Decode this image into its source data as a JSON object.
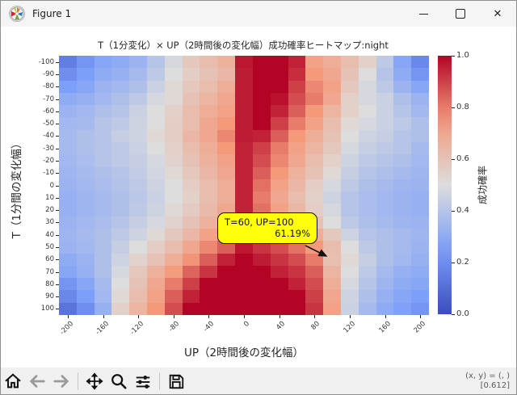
{
  "window": {
    "title": "Figure 1",
    "controls": {
      "minimize": "minimize",
      "maximize": "maximize",
      "close": "close"
    }
  },
  "chart_data": {
    "type": "heatmap",
    "title": "T（1分変化）× UP（2時間後の変化幅）成功確率ヒートマップ:night",
    "xlabel": "UP（2時間後の変化幅）",
    "ylabel": "T（1分間の変化幅）",
    "colormap": "coolwarm",
    "x": [
      -200,
      -180,
      -160,
      -140,
      -120,
      -100,
      -80,
      -60,
      -40,
      -20,
      0,
      20,
      40,
      60,
      80,
      100,
      120,
      140,
      160,
      180,
      200
    ],
    "y": [
      -100,
      -90,
      -80,
      -70,
      -60,
      -50,
      -40,
      -30,
      -20,
      -10,
      0,
      10,
      20,
      30,
      40,
      50,
      60,
      70,
      80,
      90,
      100
    ],
    "xticklabels": [
      "-200",
      "-160",
      "-120",
      "-80",
      "-40",
      "0",
      "40",
      "80",
      "120",
      "160",
      "200"
    ],
    "yticklabels": [
      "-100",
      "-90",
      "-80",
      "-70",
      "-60",
      "-50",
      "-40",
      "-30",
      "-20",
      "-10",
      "0",
      "10",
      "20",
      "30",
      "40",
      "50",
      "60",
      "70",
      "80",
      "90",
      "100"
    ],
    "values": [
      [
        0.15,
        0.22,
        0.28,
        0.3,
        0.33,
        0.4,
        0.48,
        0.58,
        0.62,
        0.66,
        0.97,
        1.0,
        1.0,
        0.95,
        0.72,
        0.68,
        0.62,
        0.55,
        0.42,
        0.28,
        0.18
      ],
      [
        0.2,
        0.25,
        0.3,
        0.32,
        0.36,
        0.42,
        0.5,
        0.56,
        0.6,
        0.64,
        0.96,
        1.0,
        1.0,
        0.93,
        0.75,
        0.7,
        0.6,
        0.5,
        0.4,
        0.3,
        0.22
      ],
      [
        0.25,
        0.28,
        0.33,
        0.35,
        0.38,
        0.45,
        0.52,
        0.58,
        0.62,
        0.68,
        0.96,
        1.0,
        1.0,
        0.9,
        0.78,
        0.72,
        0.58,
        0.48,
        0.42,
        0.33,
        0.28
      ],
      [
        0.3,
        0.32,
        0.35,
        0.38,
        0.42,
        0.48,
        0.52,
        0.6,
        0.65,
        0.7,
        0.96,
        1.0,
        0.98,
        0.88,
        0.8,
        0.7,
        0.55,
        0.48,
        0.45,
        0.38,
        0.33
      ],
      [
        0.33,
        0.35,
        0.38,
        0.4,
        0.45,
        0.5,
        0.55,
        0.62,
        0.68,
        0.72,
        0.96,
        1.0,
        0.95,
        0.85,
        0.75,
        0.65,
        0.55,
        0.5,
        0.45,
        0.4,
        0.35
      ],
      [
        0.35,
        0.36,
        0.4,
        0.42,
        0.46,
        0.5,
        0.56,
        0.62,
        0.7,
        0.75,
        0.96,
        1.0,
        0.9,
        0.8,
        0.72,
        0.62,
        0.52,
        0.48,
        0.45,
        0.42,
        0.38
      ],
      [
        0.36,
        0.38,
        0.4,
        0.44,
        0.46,
        0.52,
        0.56,
        0.64,
        0.7,
        0.78,
        0.96,
        0.95,
        0.85,
        0.75,
        0.68,
        0.6,
        0.5,
        0.46,
        0.44,
        0.4,
        0.38
      ],
      [
        0.36,
        0.38,
        0.4,
        0.42,
        0.45,
        0.5,
        0.55,
        0.62,
        0.68,
        0.75,
        0.95,
        0.9,
        0.8,
        0.72,
        0.65,
        0.58,
        0.48,
        0.44,
        0.42,
        0.4,
        0.36
      ],
      [
        0.35,
        0.37,
        0.4,
        0.42,
        0.44,
        0.48,
        0.54,
        0.6,
        0.66,
        0.72,
        0.95,
        0.88,
        0.78,
        0.7,
        0.62,
        0.55,
        0.46,
        0.42,
        0.4,
        0.38,
        0.35
      ],
      [
        0.34,
        0.36,
        0.38,
        0.4,
        0.43,
        0.47,
        0.52,
        0.58,
        0.64,
        0.7,
        0.95,
        0.85,
        0.75,
        0.66,
        0.6,
        0.52,
        0.44,
        0.4,
        0.38,
        0.36,
        0.34
      ],
      [
        0.33,
        0.35,
        0.37,
        0.39,
        0.42,
        0.46,
        0.5,
        0.56,
        0.62,
        0.68,
        0.95,
        0.82,
        0.72,
        0.64,
        0.56,
        0.48,
        0.42,
        0.38,
        0.36,
        0.34,
        0.33
      ],
      [
        0.32,
        0.34,
        0.36,
        0.38,
        0.41,
        0.45,
        0.5,
        0.55,
        0.62,
        0.68,
        0.95,
        0.8,
        0.7,
        0.62,
        0.55,
        0.46,
        0.4,
        0.37,
        0.35,
        0.33,
        0.32
      ],
      [
        0.32,
        0.34,
        0.36,
        0.38,
        0.42,
        0.46,
        0.52,
        0.57,
        0.63,
        0.7,
        0.95,
        0.82,
        0.72,
        0.64,
        0.56,
        0.48,
        0.4,
        0.37,
        0.35,
        0.33,
        0.32
      ],
      [
        0.33,
        0.35,
        0.37,
        0.4,
        0.44,
        0.48,
        0.54,
        0.6,
        0.66,
        0.72,
        0.95,
        0.85,
        0.76,
        0.68,
        0.6,
        0.5,
        0.42,
        0.38,
        0.36,
        0.34,
        0.33
      ],
      [
        0.34,
        0.36,
        0.38,
        0.42,
        0.46,
        0.52,
        0.58,
        0.64,
        0.72,
        0.78,
        0.96,
        0.88,
        0.82,
        0.75,
        0.68,
        0.58,
        0.46,
        0.4,
        0.38,
        0.36,
        0.34
      ],
      [
        0.33,
        0.35,
        0.38,
        0.44,
        0.5,
        0.56,
        0.62,
        0.7,
        0.78,
        0.85,
        0.97,
        0.92,
        0.88,
        0.82,
        0.75,
        0.62,
        0.5,
        0.42,
        0.38,
        0.36,
        0.33
      ],
      [
        0.3,
        0.33,
        0.38,
        0.46,
        0.54,
        0.6,
        0.68,
        0.76,
        0.85,
        0.95,
        1.0,
        0.96,
        0.92,
        0.88,
        0.8,
        0.61,
        0.52,
        0.44,
        0.38,
        0.35,
        0.32
      ],
      [
        0.28,
        0.32,
        0.38,
        0.48,
        0.58,
        0.66,
        0.74,
        0.84,
        0.92,
        1.0,
        1.0,
        1.0,
        0.95,
        0.92,
        0.85,
        0.65,
        0.5,
        0.42,
        0.36,
        0.32,
        0.3
      ],
      [
        0.22,
        0.28,
        0.36,
        0.5,
        0.6,
        0.7,
        0.8,
        0.9,
        1.0,
        1.0,
        1.0,
        1.0,
        1.0,
        0.95,
        0.88,
        0.68,
        0.48,
        0.4,
        0.34,
        0.3,
        0.28
      ],
      [
        0.18,
        0.25,
        0.35,
        0.52,
        0.62,
        0.72,
        0.85,
        0.95,
        1.0,
        1.0,
        1.0,
        1.0,
        1.0,
        1.0,
        0.9,
        0.7,
        0.46,
        0.38,
        0.32,
        0.28,
        0.25
      ],
      [
        0.12,
        0.2,
        0.32,
        0.55,
        0.65,
        0.75,
        0.88,
        1.0,
        1.0,
        1.0,
        1.0,
        1.0,
        1.0,
        1.0,
        0.92,
        0.72,
        0.45,
        0.36,
        0.3,
        0.26,
        0.22
      ]
    ],
    "value_range": [
      0.0,
      1.0
    ],
    "colorbar": {
      "label": "成功確率",
      "ticklabels": [
        "0.0",
        "0.2",
        "0.4",
        "0.6",
        "0.8",
        "1.0"
      ],
      "ticks": [
        0.0,
        0.2,
        0.4,
        0.6,
        0.8,
        1.0
      ]
    },
    "annotation": {
      "line1": "T=60, UP=100",
      "line2": "61.19%",
      "target": {
        "T": 60,
        "UP": 100
      },
      "box_color": "#ffff0c"
    }
  },
  "toolbar": {
    "icons": [
      "home",
      "back",
      "forward",
      "pan",
      "zoom",
      "configure-subplots",
      "save"
    ],
    "status_line1": "(x, y) = (, )",
    "status_line2": "[0.612]"
  },
  "colors": {
    "coolwarm_min": "#3b4cc0",
    "coolwarm_mid": "#dddddd",
    "coolwarm_max": "#b40426",
    "annotation_yellow": "#ffff0c"
  }
}
